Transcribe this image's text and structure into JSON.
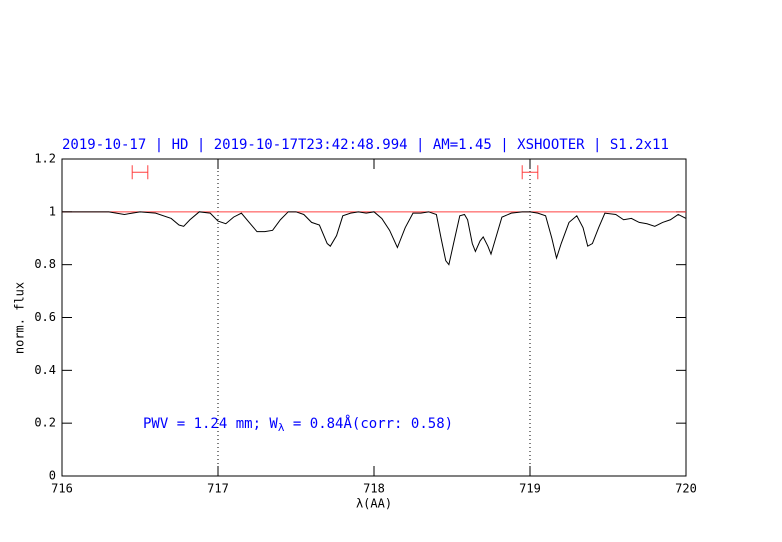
{
  "chart_data": {
    "type": "line",
    "title": "2019-10-17 | HD | 2019-10-17T23:42:48.994 | AM=1.45 | XSHOOTER | S1.2x11",
    "annotation": [
      "PWV = 1.24 mm; W",
      "λ",
      " = 0.84Å(corr: 0.58)"
    ],
    "x_label": "λ(AA)",
    "y_label": "norm. flux",
    "xlim": [
      716,
      720
    ],
    "ylim": [
      0,
      1.2
    ],
    "xticks": [
      716,
      717,
      718,
      719,
      720
    ],
    "yticks": [
      0,
      0.2,
      0.4,
      0.6,
      0.8,
      1,
      1.2
    ],
    "continuum": 1,
    "continuum_color": "#ff4040",
    "vlines": [
      717,
      719
    ],
    "windows": {
      "y": 1.15,
      "color": "#ff4040",
      "ranges": [
        [
          716.45,
          716.55
        ],
        [
          718.95,
          719.05
        ]
      ]
    },
    "series": [
      {
        "color": "#000000",
        "x": [
          716.0,
          716.1,
          716.2,
          716.3,
          716.4,
          716.5,
          716.6,
          716.7,
          716.75,
          716.78,
          716.82,
          716.88,
          716.95,
          717.0,
          717.05,
          717.1,
          717.15,
          717.2,
          717.25,
          717.3,
          717.35,
          717.4,
          717.45,
          717.5,
          717.55,
          717.6,
          717.65,
          717.7,
          717.72,
          717.76,
          717.8,
          717.85,
          717.9,
          717.95,
          718.0,
          718.05,
          718.1,
          718.15,
          718.2,
          718.25,
          718.3,
          718.35,
          718.4,
          718.43,
          718.46,
          718.48,
          718.51,
          718.55,
          718.58,
          718.6,
          718.63,
          718.65,
          718.68,
          718.7,
          718.73,
          718.75,
          718.78,
          718.82,
          718.88,
          718.95,
          719.0,
          719.05,
          719.1,
          719.14,
          719.17,
          719.2,
          719.25,
          719.3,
          719.34,
          719.37,
          719.4,
          719.44,
          719.48,
          719.55,
          719.6,
          719.65,
          719.7,
          719.75,
          719.8,
          719.85,
          719.9,
          719.95,
          720.0
        ],
        "values": [
          1.0,
          1.0,
          1.0,
          1.0,
          0.99,
          1.0,
          0.995,
          0.975,
          0.95,
          0.945,
          0.97,
          1.0,
          0.995,
          0.965,
          0.955,
          0.98,
          0.995,
          0.96,
          0.925,
          0.925,
          0.93,
          0.97,
          1.0,
          1.0,
          0.99,
          0.96,
          0.95,
          0.88,
          0.87,
          0.91,
          0.985,
          0.995,
          1.0,
          0.995,
          1.0,
          0.975,
          0.93,
          0.865,
          0.94,
          0.995,
          0.995,
          1.0,
          0.99,
          0.9,
          0.815,
          0.8,
          0.88,
          0.985,
          0.99,
          0.97,
          0.88,
          0.85,
          0.89,
          0.905,
          0.87,
          0.84,
          0.9,
          0.98,
          0.995,
          1.0,
          1.0,
          0.995,
          0.985,
          0.9,
          0.825,
          0.88,
          0.96,
          0.985,
          0.94,
          0.87,
          0.88,
          0.94,
          0.995,
          0.99,
          0.97,
          0.975,
          0.96,
          0.955,
          0.945,
          0.96,
          0.97,
          0.99,
          0.975
        ]
      }
    ],
    "title_color": "#0000ff"
  }
}
